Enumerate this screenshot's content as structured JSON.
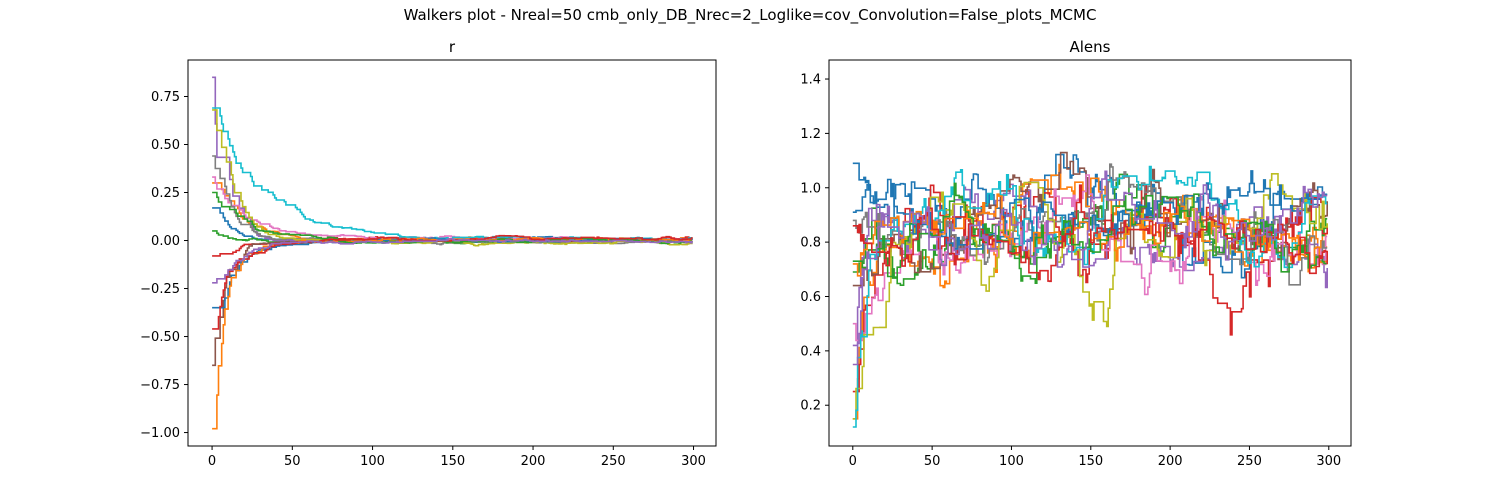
{
  "figure": {
    "suptitle": "Walkers plot - Nreal=50 cmb_only_DB_Nrec=2_Loglike=cov_Convolution=False_plots_MCMC"
  },
  "palette": [
    "#1f77b4",
    "#ff7f0e",
    "#2ca02c",
    "#d62728",
    "#9467bd",
    "#8c564b",
    "#e377c2",
    "#7f7f7f",
    "#bcbd22",
    "#17becf"
  ],
  "chart_data": [
    {
      "type": "line",
      "title": "r",
      "xlabel": "",
      "ylabel": "",
      "xlim": [
        -15,
        314
      ],
      "ylim": [
        -1.07,
        0.94
      ],
      "xticks": [
        0,
        50,
        100,
        150,
        200,
        250,
        300
      ],
      "yticks": [
        -1.0,
        -0.75,
        -0.5,
        -0.25,
        0.0,
        0.25,
        0.5,
        0.75
      ],
      "ytick_labels": [
        "−1.00",
        "−0.75",
        "−0.50",
        "−0.25",
        "0.00",
        "0.25",
        "0.50",
        "0.75"
      ],
      "grid": false,
      "legend": "none",
      "n_steps": 300,
      "series": [
        {
          "start": 0.17,
          "settle": 0.004,
          "tau": 6,
          "noise": 0.006,
          "seed": 11
        },
        {
          "start": 0.3,
          "settle": 0.008,
          "tau": 8,
          "noise": 0.006,
          "seed": 12
        },
        {
          "start": 0.05,
          "settle": -0.004,
          "tau": 5,
          "noise": 0.006,
          "seed": 13
        },
        {
          "start": -0.08,
          "settle": 0.006,
          "tau": 6,
          "noise": 0.006,
          "seed": 14
        },
        {
          "start": 0.85,
          "settle": 0.002,
          "tau": 3,
          "noise": 0.006,
          "seed": 15
        },
        {
          "start": -0.65,
          "settle": -0.003,
          "tau": 4,
          "noise": 0.006,
          "seed": 16
        },
        {
          "start": 0.33,
          "settle": 0.01,
          "tau": 10,
          "noise": 0.006,
          "seed": 17
        },
        {
          "start": 0.44,
          "settle": -0.006,
          "tau": 7,
          "noise": 0.006,
          "seed": 18
        },
        {
          "start": 0.68,
          "settle": -0.008,
          "tau": 6,
          "noise": 0.006,
          "seed": 19
        },
        {
          "start": 0.69,
          "settle": 0.005,
          "tau": 14,
          "noise": 0.006,
          "seed": 20
        },
        {
          "start": -0.35,
          "settle": 0.0,
          "tau": 6,
          "noise": 0.006,
          "seed": 21
        },
        {
          "start": -0.98,
          "settle": 0.003,
          "tau": 5,
          "noise": 0.006,
          "seed": 22
        },
        {
          "start": 0.25,
          "settle": -0.002,
          "tau": 9,
          "noise": 0.006,
          "seed": 23
        },
        {
          "start": -0.46,
          "settle": 0.007,
          "tau": 7,
          "noise": 0.006,
          "seed": 24
        },
        {
          "start": -0.22,
          "settle": -0.005,
          "tau": 8,
          "noise": 0.006,
          "seed": 25
        }
      ]
    },
    {
      "type": "line",
      "title": "Alens",
      "xlabel": "",
      "ylabel": "",
      "xlim": [
        -15,
        314
      ],
      "ylim": [
        0.05,
        1.47
      ],
      "xticks": [
        0,
        50,
        100,
        150,
        200,
        250,
        300
      ],
      "yticks": [
        0.2,
        0.4,
        0.6,
        0.8,
        1.0,
        1.2,
        1.4
      ],
      "ytick_labels": [
        "0.2",
        "0.4",
        "0.6",
        "0.8",
        "1.0",
        "1.2",
        "1.4"
      ],
      "grid": false,
      "legend": "none",
      "n_steps": 300,
      "series": [
        {
          "start": 1.09,
          "mean": 0.93,
          "tau": 10,
          "noise": 0.1,
          "seed": 31
        },
        {
          "start": 0.15,
          "mean": 0.86,
          "tau": 10,
          "noise": 0.1,
          "seed": 32
        },
        {
          "start": 0.69,
          "mean": 0.82,
          "tau": 10,
          "noise": 0.1,
          "seed": 33
        },
        {
          "start": 0.25,
          "mean": 0.87,
          "tau": 10,
          "noise": 0.12,
          "seed": 34
        },
        {
          "start": 0.42,
          "mean": 0.85,
          "tau": 10,
          "noise": 0.09,
          "seed": 35
        },
        {
          "start": 0.64,
          "mean": 0.9,
          "tau": 10,
          "noise": 0.09,
          "seed": 36
        },
        {
          "start": 0.5,
          "mean": 0.8,
          "tau": 10,
          "noise": 0.1,
          "seed": 37
        },
        {
          "start": 0.88,
          "mean": 0.84,
          "tau": 10,
          "noise": 0.08,
          "seed": 38
        },
        {
          "start": 0.15,
          "mean": 0.86,
          "tau": 10,
          "noise": 0.1,
          "seed": 39
        },
        {
          "start": 0.12,
          "mean": 0.88,
          "tau": 10,
          "noise": 0.09,
          "seed": 40
        },
        {
          "start": 0.91,
          "mean": 0.92,
          "tau": 10,
          "noise": 0.08,
          "seed": 41
        },
        {
          "start": 0.72,
          "mean": 0.8,
          "tau": 10,
          "noise": 0.08,
          "seed": 42
        },
        {
          "start": 0.73,
          "mean": 0.83,
          "tau": 10,
          "noise": 0.08,
          "seed": 43
        },
        {
          "start": 0.86,
          "mean": 0.78,
          "tau": 10,
          "noise": 0.08,
          "seed": 44
        },
        {
          "start": 0.35,
          "mean": 0.89,
          "tau": 10,
          "noise": 0.09,
          "seed": 45
        }
      ]
    }
  ]
}
